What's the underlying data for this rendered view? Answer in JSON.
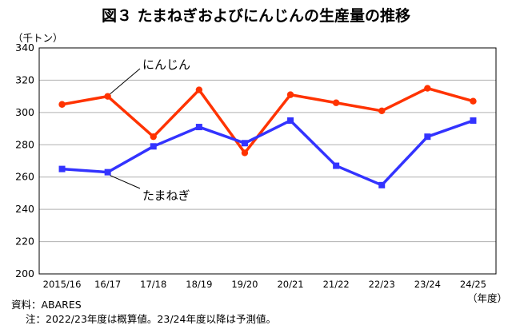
{
  "title": "図３ たまねぎおよびにんじんの生産量の推移",
  "chart_data": {
    "type": "line",
    "title": "図３ たまねぎおよびにんじんの生産量の推移",
    "ylabel": "（千トン）",
    "xlabel": "（年度）",
    "categories": [
      "2015/16",
      "16/17",
      "17/18",
      "18/19",
      "19/20",
      "20/21",
      "21/22",
      "22/23",
      "23/24",
      "24/25"
    ],
    "yticks": [
      "200",
      "220",
      "240",
      "260",
      "280",
      "300",
      "320",
      "340"
    ],
    "ylim": [
      200,
      340
    ],
    "grid": true,
    "series": [
      {
        "name": "にんじん",
        "color": "#ff3300",
        "marker": "circle",
        "values": [
          305,
          310,
          285,
          314,
          275,
          311,
          306,
          301,
          315,
          307
        ]
      },
      {
        "name": "たまねぎ",
        "color": "#3333ff",
        "marker": "square",
        "values": [
          265,
          263,
          279,
          291,
          281,
          295,
          267,
          255,
          285,
          295
        ]
      }
    ]
  },
  "source": "資料：ABARES",
  "note": "注：2022/23年度は概算値。23/24年度以降は予測値。"
}
